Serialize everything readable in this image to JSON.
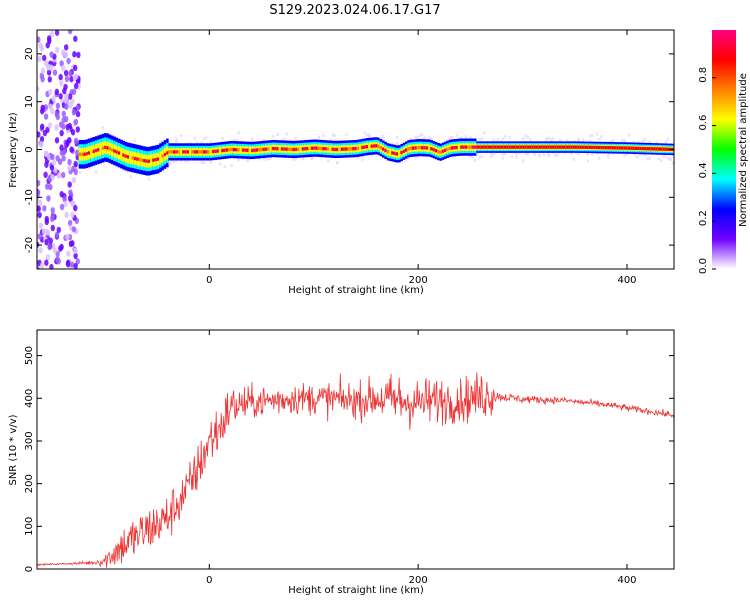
{
  "title": "S129.2023.024.06.17.G17",
  "chart_data": [
    {
      "type": "heatmap",
      "xlabel": "Height of straight line (km)",
      "ylabel": "Frequency (Hz)",
      "xlim": [
        -165,
        445
      ],
      "ylim": [
        -25,
        25
      ],
      "x_ticks": [
        0,
        200,
        400
      ],
      "y_ticks": [
        -20,
        -10,
        0,
        10,
        20
      ],
      "grid": false,
      "colorbar": {
        "label": "Normalized spectral amplitude",
        "range": [
          0.0,
          1.0
        ],
        "ticks": [
          "0.0",
          "0.2",
          "0.4",
          "0.6",
          "0.8"
        ],
        "colors": [
          "#ffffff",
          "#7000ff",
          "#0000ff",
          "#00ffff",
          "#00ff00",
          "#ffff00",
          "#ff8000",
          "#ff0000",
          "#ff0080"
        ]
      },
      "ridge": {
        "x": [
          -120,
          -100,
          -80,
          -60,
          -50,
          -40,
          -20,
          0,
          20,
          40,
          60,
          80,
          100,
          120,
          140,
          150,
          160,
          170,
          180,
          190,
          200,
          210,
          220,
          230,
          240,
          255,
          300,
          350,
          400,
          445
        ],
        "freq": [
          -1.0,
          0.5,
          -1.5,
          -2.5,
          -2.0,
          -0.5,
          -0.5,
          -0.5,
          0.0,
          -0.2,
          0.2,
          0.0,
          0.3,
          0.0,
          0.2,
          0.6,
          0.8,
          -0.5,
          -1.0,
          0.2,
          0.4,
          0.3,
          -0.6,
          0.3,
          0.5,
          0.5,
          0.5,
          0.5,
          0.3,
          0.0
        ]
      },
      "noise_band_x": [
        -165,
        -125
      ]
    },
    {
      "type": "line",
      "xlabel": "Height of straight line (km)",
      "ylabel": "SNR (10 * v/v)",
      "xlim": [
        -165,
        445
      ],
      "ylim": [
        0,
        560
      ],
      "x_ticks": [
        0,
        200,
        400
      ],
      "y_ticks": [
        0,
        100,
        200,
        300,
        400,
        500
      ],
      "grid": false,
      "series": [
        {
          "color": "#ee3333",
          "x": [
            -165,
            -140,
            -110,
            -100,
            -90,
            -80,
            -60,
            -40,
            -20,
            -10,
            0,
            10,
            20,
            40,
            60,
            80,
            100,
            120,
            140,
            160,
            180,
            200,
            220,
            240,
            260,
            270,
            275,
            300,
            340,
            380,
            420,
            445
          ],
          "y": [
            10,
            12,
            15,
            20,
            40,
            60,
            90,
            120,
            190,
            240,
            300,
            330,
            380,
            390,
            395,
            400,
            400,
            398,
            395,
            400,
            395,
            390,
            395,
            395,
            405,
            410,
            405,
            398,
            395,
            385,
            370,
            360
          ],
          "spread": [
            2,
            2,
            5,
            20,
            40,
            55,
            60,
            60,
            60,
            60,
            70,
            65,
            55,
            40,
            40,
            40,
            40,
            45,
            45,
            50,
            70,
            60,
            60,
            55,
            60,
            60,
            12,
            10,
            8,
            8,
            8,
            8
          ]
        }
      ]
    }
  ]
}
